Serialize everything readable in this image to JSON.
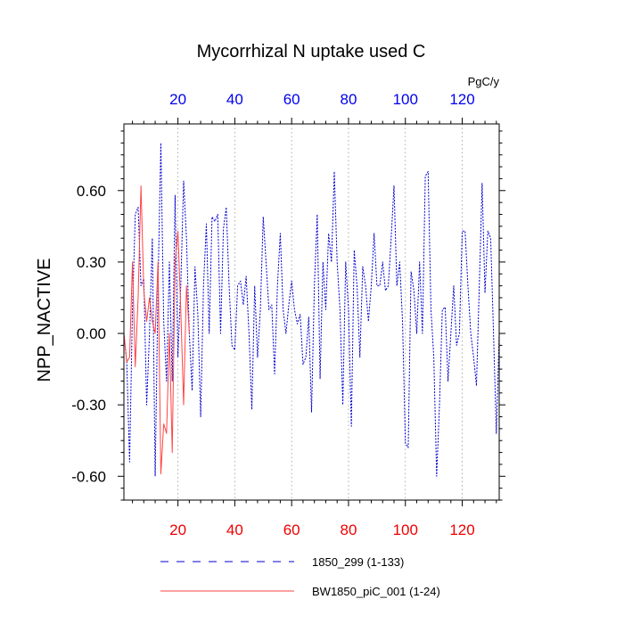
{
  "chart_data": {
    "type": "line",
    "title": "Mycorrhizal N uptake used C",
    "xlabel": "",
    "ylabel": "NPP_NACTIVE",
    "units_label": "PgC/y",
    "xlim": [
      1,
      133
    ],
    "ylim": [
      -0.7,
      0.88
    ],
    "x_ticks": [
      20,
      40,
      60,
      80,
      100,
      120
    ],
    "x_tick_labels": [
      "20",
      "40",
      "60",
      "80",
      "100",
      "120"
    ],
    "y_ticks": [
      -0.6,
      -0.3,
      0.0,
      0.3,
      0.6
    ],
    "y_tick_labels": [
      "-0.60",
      "-0.30",
      "0.00",
      "0.30",
      "0.60"
    ],
    "grid": "vertical-dotted",
    "legend_position": "bottom",
    "colors": {
      "series_1": "#0000cc",
      "series_2": "#ff4444",
      "top_axis_labels": "#0000ee",
      "bottom_axis_labels": "#ee0000",
      "grid": "#999999"
    },
    "series": [
      {
        "name": "1850_299 (1-133)",
        "style": "dashed",
        "x_start": 1,
        "values": [
          0.0,
          -0.12,
          -0.54,
          0.1,
          0.5,
          0.53,
          0.2,
          0.23,
          -0.3,
          0.0,
          0.4,
          -0.6,
          0.2,
          0.8,
          0.05,
          -0.2,
          0.3,
          -0.2,
          0.58,
          -0.1,
          0.2,
          0.64,
          0.4,
          0.0,
          -0.24,
          0.28,
          0.08,
          -0.35,
          0.2,
          0.46,
          0.0,
          0.49,
          0.47,
          0.5,
          0.0,
          0.44,
          0.53,
          0.2,
          -0.05,
          -0.07,
          0.2,
          0.22,
          0.12,
          0.24,
          0.0,
          -0.32,
          0.2,
          -0.1,
          0.1,
          0.49,
          0.3,
          0.1,
          0.12,
          -0.17,
          0.2,
          0.42,
          0.1,
          0.0,
          0.12,
          0.22,
          0.1,
          0.04,
          0.08,
          -0.13,
          -0.1,
          0.07,
          -0.33,
          0.2,
          0.5,
          -0.19,
          0.3,
          0.1,
          0.42,
          0.3,
          0.68,
          0.3,
          0.1,
          -0.3,
          0.3,
          0.1,
          -0.39,
          0.35,
          0.2,
          -0.1,
          0.28,
          0.2,
          0.05,
          0.2,
          0.42,
          0.2,
          0.2,
          0.3,
          0.18,
          0.2,
          0.4,
          0.62,
          0.2,
          0.3,
          0.05,
          -0.46,
          -0.48,
          0.26,
          0.18,
          0.0,
          0.3,
          0.0,
          0.66,
          0.68,
          0.1,
          -0.1,
          -0.6,
          -0.3,
          0.1,
          0.11,
          -0.2,
          0.0,
          0.2,
          -0.05,
          0.0,
          0.43,
          0.43,
          0.2,
          0.0,
          -0.1,
          -0.22,
          0.2,
          0.63,
          0.17,
          0.43,
          0.4,
          0.0,
          -0.42,
          0.0
        ]
      },
      {
        "name": "BW1850_piC_001 (1-24)",
        "style": "solid",
        "x_start": 1,
        "values": [
          0.0,
          -0.12,
          -0.1,
          0.3,
          -0.14,
          0.15,
          0.62,
          0.18,
          0.05,
          0.15,
          0.05,
          0.0,
          0.3,
          -0.59,
          -0.38,
          -0.42,
          0.0,
          -0.5,
          0.3,
          0.43,
          0.1,
          -0.3,
          0.2,
          0.0
        ]
      }
    ]
  }
}
